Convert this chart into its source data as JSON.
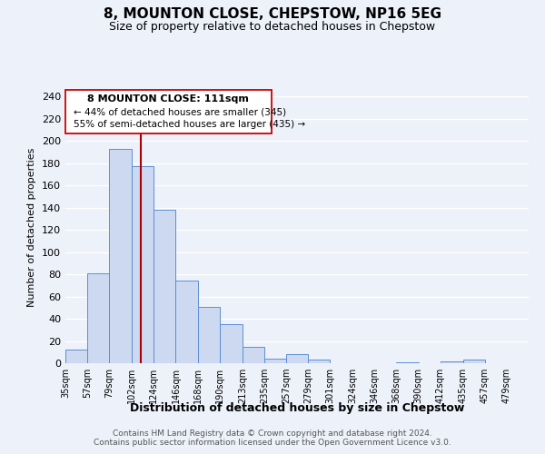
{
  "title": "8, MOUNTON CLOSE, CHEPSTOW, NP16 5EG",
  "subtitle": "Size of property relative to detached houses in Chepstow",
  "xlabel": "Distribution of detached houses by size in Chepstow",
  "ylabel": "Number of detached properties",
  "bar_values": [
    12,
    81,
    193,
    177,
    138,
    74,
    51,
    35,
    15,
    4,
    8,
    3,
    0,
    0,
    0,
    1,
    0,
    2,
    3,
    0
  ],
  "bar_labels": [
    "35sqm",
    "57sqm",
    "79sqm",
    "102sqm",
    "124sqm",
    "146sqm",
    "168sqm",
    "190sqm",
    "213sqm",
    "235sqm",
    "257sqm",
    "279sqm",
    "301sqm",
    "324sqm",
    "346sqm",
    "368sqm",
    "390sqm",
    "412sqm",
    "435sqm",
    "457sqm",
    "479sqm"
  ],
  "bar_edges": [
    35,
    57,
    79,
    102,
    124,
    146,
    168,
    190,
    213,
    235,
    257,
    279,
    301,
    324,
    346,
    368,
    390,
    412,
    435,
    457,
    479
  ],
  "bar_color": "#ccd9f0",
  "bar_edge_color": "#5b8fd4",
  "property_line_x": 111,
  "property_line_color": "#aa0000",
  "annotation_title": "8 MOUNTON CLOSE: 111sqm",
  "annotation_line1": "← 44% of detached houses are smaller (345)",
  "annotation_line2": "55% of semi-detached houses are larger (435) →",
  "ylim": [
    0,
    245
  ],
  "yticks": [
    0,
    20,
    40,
    60,
    80,
    100,
    120,
    140,
    160,
    180,
    200,
    220,
    240
  ],
  "footer1": "Contains HM Land Registry data © Crown copyright and database right 2024.",
  "footer2": "Contains public sector information licensed under the Open Government Licence v3.0.",
  "bg_color": "#edf1fa",
  "plot_bg_color": "#edf1fa",
  "grid_color": "#ffffff",
  "title_fontsize": 11,
  "subtitle_fontsize": 9
}
